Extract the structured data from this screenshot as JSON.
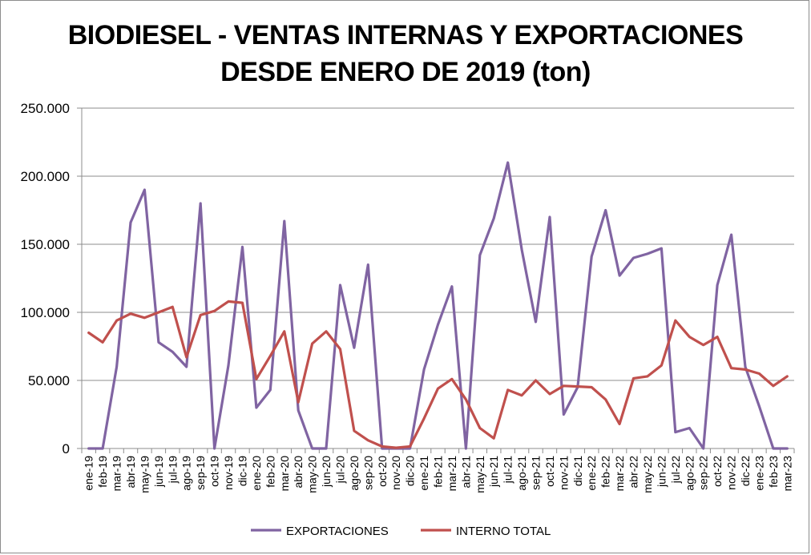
{
  "chart_data": {
    "type": "line",
    "title": "BIODIESEL - VENTAS INTERNAS Y EXPORTACIONES",
    "subtitle": "DESDE ENERO DE 2019 (ton)",
    "xlabel": "",
    "ylabel": "",
    "ylim": [
      0,
      250000
    ],
    "yticks": [
      0,
      50000,
      100000,
      150000,
      200000,
      250000
    ],
    "ytick_labels": [
      "0",
      "50.000",
      "100.000",
      "150.000",
      "200.000",
      "250.000"
    ],
    "grid": "horizontal",
    "legend_position": "bottom",
    "categories": [
      "ene-19",
      "feb-19",
      "mar-19",
      "abr-19",
      "may-19",
      "jun-19",
      "jul-19",
      "ago-19",
      "sep-19",
      "oct-19",
      "nov-19",
      "dic-19",
      "ene-20",
      "feb-20",
      "mar-20",
      "abr-20",
      "may-20",
      "jun-20",
      "jul-20",
      "ago-20",
      "sep-20",
      "oct-20",
      "nov-20",
      "dic-20",
      "ene-21",
      "feb-21",
      "mar-21",
      "abr-21",
      "may-21",
      "jun-21",
      "jul-21",
      "ago-21",
      "sep-21",
      "oct-21",
      "nov-21",
      "dic-21",
      "ene-22",
      "feb-22",
      "mar-22",
      "abr-22",
      "may-22",
      "jun-22",
      "jul-22",
      "ago-22",
      "sep-22",
      "oct-22",
      "nov-22",
      "dic-22",
      "ene-23",
      "feb-23",
      "mar-23"
    ],
    "series": [
      {
        "name": "EXPORTACIONES",
        "color": "#8064a2",
        "values": [
          0,
          0,
          60000,
          166000,
          190000,
          78000,
          71000,
          60000,
          180000,
          0,
          61000,
          148000,
          30000,
          43000,
          167000,
          28000,
          0,
          0,
          120000,
          74000,
          135000,
          0,
          0,
          0,
          58000,
          91000,
          119000,
          0,
          142000,
          169000,
          210000,
          146000,
          93000,
          170000,
          25000,
          45000,
          141000,
          175000,
          127000,
          140000,
          143000,
          147000,
          12000,
          15000,
          0,
          120000,
          157000,
          60000,
          31000,
          0,
          0
        ]
      },
      {
        "name": "INTERNO TOTAL",
        "color": "#c0504d",
        "values": [
          85000,
          78000,
          94000,
          99000,
          96000,
          100000,
          104000,
          67000,
          98000,
          101000,
          108000,
          107000,
          51000,
          68000,
          86000,
          34000,
          77000,
          86000,
          73000,
          13000,
          6000,
          1500,
          500,
          1500,
          22000,
          44000,
          51000,
          36000,
          15000,
          7500,
          43000,
          39000,
          50000,
          40000,
          46000,
          45500,
          45000,
          36000,
          18000,
          51500,
          53000,
          61000,
          94000,
          82000,
          76000,
          82000,
          59000,
          58000,
          55000,
          46000,
          53000
        ]
      }
    ]
  }
}
